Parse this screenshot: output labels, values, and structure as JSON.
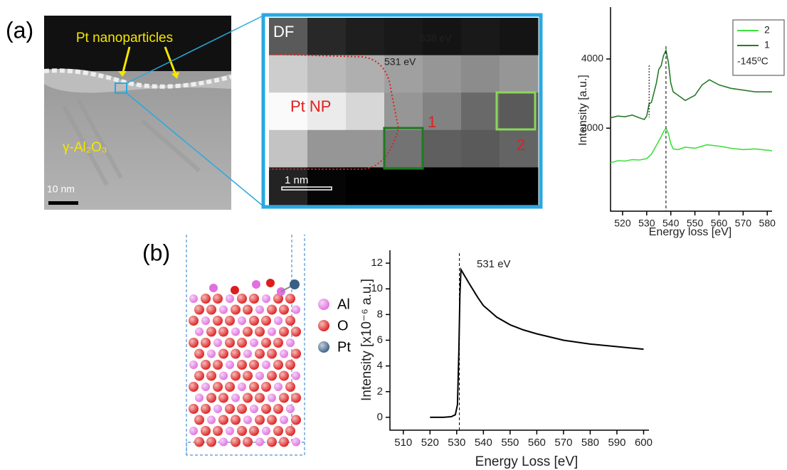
{
  "panel_labels": [
    "(a)",
    "(b)"
  ],
  "tem_image": {
    "particles_label": "Pt nanoparticles",
    "substrate_label": "γ-Al₂O₃",
    "scale_bar": "10 nm"
  },
  "df_image": {
    "title": "DF",
    "region_label": "Pt NP",
    "box_labels": [
      "1",
      "2"
    ],
    "scale_bar": "1 nm"
  },
  "structure": {
    "legend": [
      {
        "name": "Al",
        "color": "#e070e0"
      },
      {
        "name": "O",
        "color": "#dd1c1c"
      },
      {
        "name": "Pt",
        "color": "#3a5f86"
      }
    ]
  },
  "chart_data": [
    {
      "type": "line",
      "xlabel": "Energy loss [eV]",
      "ylabel": "Intensity [a.u.]",
      "xlim": [
        515,
        582
      ],
      "ylim": [
        -400,
        5500
      ],
      "xticks": [
        520,
        530,
        540,
        550,
        560,
        570,
        580
      ],
      "yticks": [
        2000,
        4000
      ],
      "legend_note": "-145⁰C",
      "series": [
        {
          "name": "2",
          "color": "#3ee03e",
          "x": [
            515,
            518,
            521,
            524,
            527,
            530,
            532,
            534,
            536,
            537,
            538,
            539,
            540,
            541,
            543,
            546,
            550,
            555,
            560,
            565,
            570,
            575,
            582
          ],
          "values": [
            1000,
            1060,
            1050,
            1090,
            1080,
            1120,
            1250,
            1500,
            1750,
            1900,
            2000,
            1850,
            1550,
            1400,
            1380,
            1450,
            1420,
            1520,
            1480,
            1420,
            1380,
            1400,
            1350
          ]
        },
        {
          "name": "1",
          "color": "#2a7a2a",
          "x": [
            515,
            518,
            521,
            524,
            527,
            529,
            530,
            531,
            532,
            534,
            535,
            536,
            537,
            538,
            539,
            540,
            541,
            543,
            546,
            550,
            553,
            556,
            560,
            565,
            570,
            575,
            582
          ],
          "values": [
            2300,
            2350,
            2330,
            2380,
            2300,
            2250,
            2350,
            2700,
            2750,
            3300,
            3700,
            3800,
            4100,
            4250,
            3900,
            3300,
            3050,
            2950,
            2800,
            2950,
            3250,
            3400,
            3250,
            3150,
            3100,
            3050,
            3050
          ]
        }
      ],
      "annotations": [
        {
          "label": "538 eV",
          "x": 538
        },
        {
          "label": "531 eV",
          "x": 531
        }
      ]
    },
    {
      "type": "line",
      "xlabel": "Energy Loss [eV]",
      "ylabel": "Intensity [x10⁻⁶ a.u.]",
      "xlim": [
        505,
        602
      ],
      "ylim": [
        -1,
        13
      ],
      "xticks": [
        510,
        520,
        530,
        540,
        550,
        560,
        570,
        580,
        590,
        600
      ],
      "yticks": [
        0,
        2,
        4,
        6,
        8,
        10,
        12
      ],
      "series": [
        {
          "color": "#000000",
          "x": [
            520,
            525,
            528,
            529.5,
            530.3,
            530.8,
            531.2,
            531.6,
            533,
            535,
            538,
            540,
            545,
            550,
            555,
            560,
            570,
            580,
            590,
            600
          ],
          "values": [
            0,
            0,
            0.05,
            0.2,
            1,
            5,
            9.5,
            11.5,
            11,
            10.3,
            9.3,
            8.7,
            7.8,
            7.2,
            6.8,
            6.5,
            6,
            5.7,
            5.5,
            5.3
          ]
        }
      ],
      "annotations": [
        {
          "label": "531 eV",
          "x": 531
        }
      ]
    }
  ]
}
